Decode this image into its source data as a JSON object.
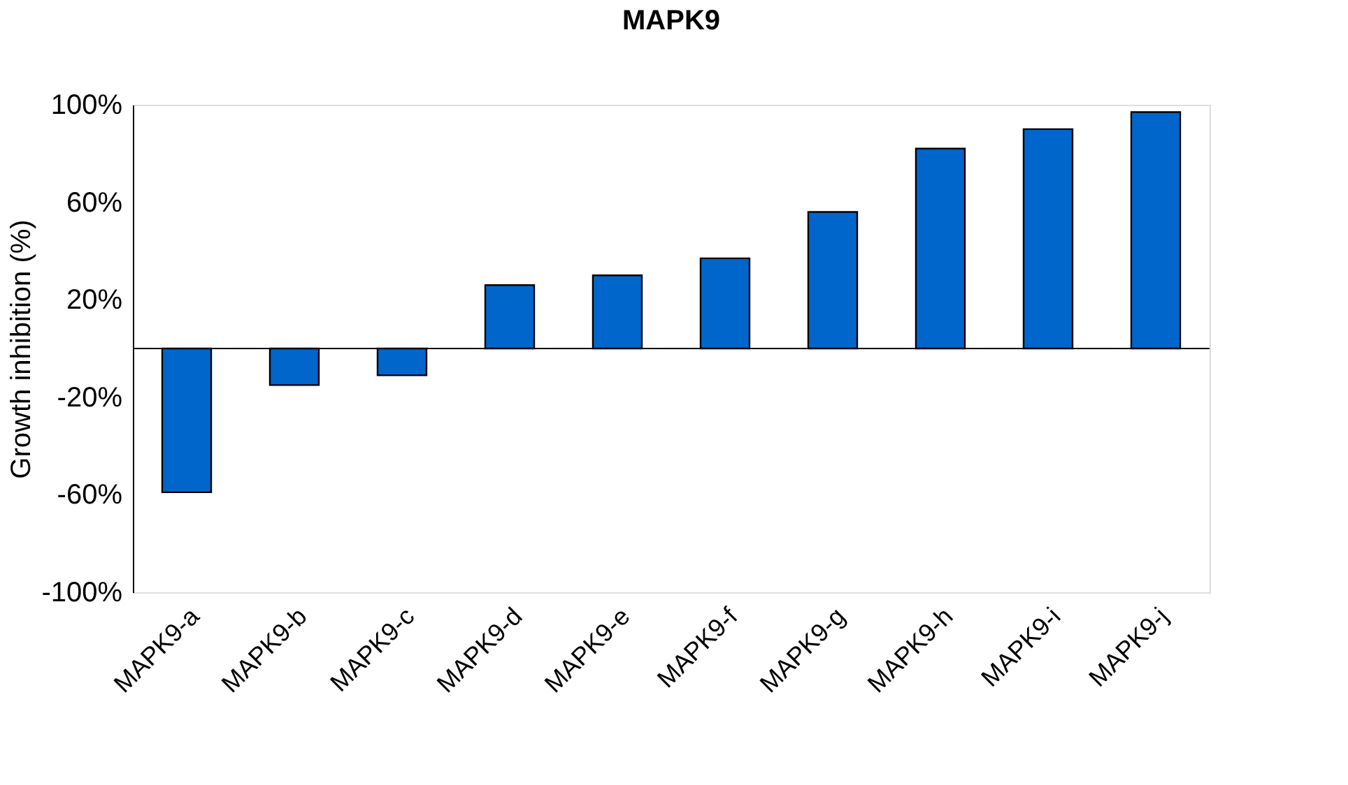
{
  "chart_data": {
    "type": "bar",
    "title": "MAPK9",
    "ylabel": "Growth inhibition (%)",
    "categories": [
      "MAPK9-a",
      "MAPK9-b",
      "MAPK9-c",
      "MAPK9-d",
      "MAPK9-e",
      "MAPK9-f",
      "MAPK9-g",
      "MAPK9-h",
      "MAPK9-i",
      "MAPK9-j"
    ],
    "values": [
      -59,
      -15,
      -11,
      26,
      30,
      37,
      56,
      82,
      90,
      97
    ],
    "color": "#0066cc",
    "ylim": [
      -100,
      100
    ],
    "yticks": [
      {
        "value": -100,
        "label": "-100%"
      },
      {
        "value": -60,
        "label": "-60%"
      },
      {
        "value": -20,
        "label": "-20%"
      },
      {
        "value": 20,
        "label": "20%"
      },
      {
        "value": 60,
        "label": "60%"
      },
      {
        "value": 100,
        "label": "100%"
      }
    ],
    "grid": false
  }
}
